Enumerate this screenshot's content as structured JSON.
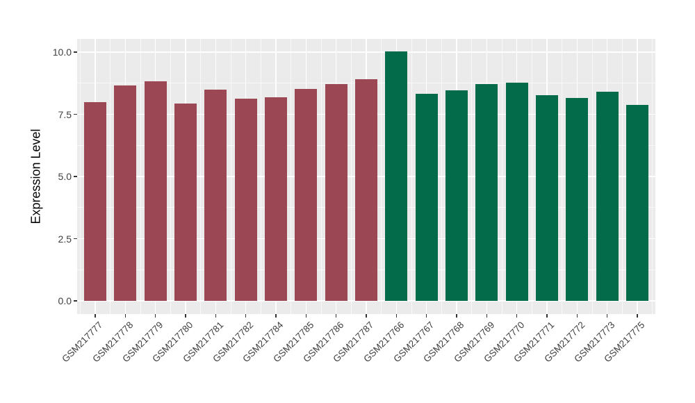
{
  "figure": {
    "background": "#FFFFFF"
  },
  "chart_data": {
    "type": "bar",
    "title": "",
    "xlabel": "",
    "ylabel": "Expression Level",
    "ylim": [
      0,
      10.5
    ],
    "grid": "on",
    "legend": "none",
    "panel_background": "#EBEBEB",
    "grid_color": "#FFFFFF",
    "tick_mark_color": "#333333",
    "axis_text_color": "#404040",
    "axis_title_color": "#000000",
    "yticks": [
      {
        "value": 0.0,
        "label": "0.0"
      },
      {
        "value": 2.5,
        "label": "2.5"
      },
      {
        "value": 5.0,
        "label": "5.0"
      },
      {
        "value": 7.5,
        "label": "7.5"
      },
      {
        "value": 10.0,
        "label": "10.0"
      }
    ],
    "minor_yticks": [
      1.25,
      3.75,
      6.25,
      8.75
    ],
    "categories": [
      "GSM217777",
      "GSM217778",
      "GSM217779",
      "GSM217780",
      "GSM217781",
      "GSM217782",
      "GSM217784",
      "GSM217785",
      "GSM217786",
      "GSM217787",
      "GSM217766",
      "GSM217767",
      "GSM217768",
      "GSM217769",
      "GSM217770",
      "GSM217771",
      "GSM217772",
      "GSM217773",
      "GSM217775"
    ],
    "values": [
      7.99,
      8.66,
      8.83,
      7.92,
      8.5,
      8.13,
      8.19,
      8.52,
      8.72,
      8.91,
      10.02,
      8.33,
      8.46,
      8.71,
      8.77,
      8.28,
      8.17,
      8.4,
      7.89
    ],
    "bar_groups": [
      "group1",
      "group1",
      "group1",
      "group1",
      "group1",
      "group1",
      "group1",
      "group1",
      "group1",
      "group1",
      "group2",
      "group2",
      "group2",
      "group2",
      "group2",
      "group2",
      "group2",
      "group2",
      "group2"
    ],
    "group_colors": {
      "group1": "#9C4754",
      "group2": "#046B4A"
    }
  }
}
